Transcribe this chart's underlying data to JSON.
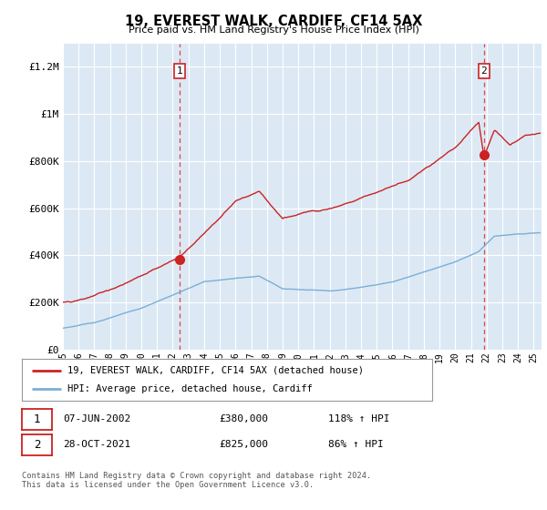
{
  "title": "19, EVEREST WALK, CARDIFF, CF14 5AX",
  "subtitle": "Price paid vs. HM Land Registry's House Price Index (HPI)",
  "background_color": "#ffffff",
  "plot_background": "#dce9f5",
  "grid_color": "#ffffff",
  "hpi_color": "#7bafd4",
  "price_color": "#cc2222",
  "vline_color": "#dd4444",
  "ylabel_ticks": [
    "£0",
    "£200K",
    "£400K",
    "£600K",
    "£800K",
    "£1M",
    "£1.2M"
  ],
  "ytick_values": [
    0,
    200000,
    400000,
    600000,
    800000,
    1000000,
    1200000
  ],
  "ylim": [
    0,
    1300000
  ],
  "xlim_start": 1995.0,
  "xlim_end": 2025.5,
  "marker1_x": 2002.44,
  "marker1_y": 380000,
  "marker1_label": "1",
  "marker2_x": 2021.83,
  "marker2_y": 825000,
  "marker2_label": "2",
  "legend_line1": "19, EVEREST WALK, CARDIFF, CF14 5AX (detached house)",
  "legend_line2": "HPI: Average price, detached house, Cardiff",
  "table_row1": [
    "1",
    "07-JUN-2002",
    "£380,000",
    "118% ↑ HPI"
  ],
  "table_row2": [
    "2",
    "28-OCT-2021",
    "£825,000",
    "86% ↑ HPI"
  ],
  "footer": "Contains HM Land Registry data © Crown copyright and database right 2024.\nThis data is licensed under the Open Government Licence v3.0.",
  "xtick_years": [
    1995,
    1996,
    1997,
    1998,
    1999,
    2000,
    2001,
    2002,
    2003,
    2004,
    2005,
    2006,
    2007,
    2008,
    2009,
    2010,
    2011,
    2012,
    2013,
    2014,
    2015,
    2016,
    2017,
    2018,
    2019,
    2020,
    2021,
    2022,
    2023,
    2024,
    2025
  ]
}
